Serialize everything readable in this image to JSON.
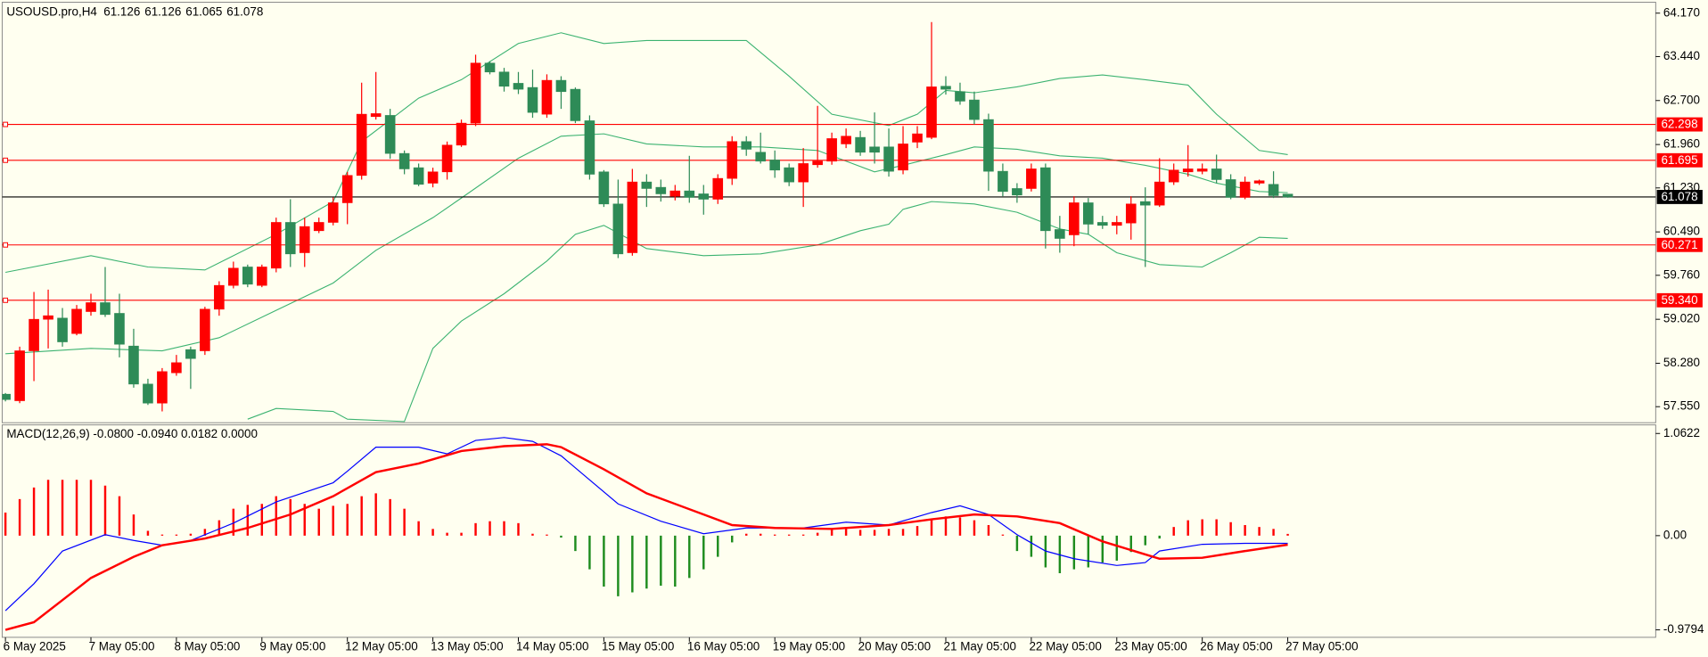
{
  "chart_data": [
    {
      "type": "candlestick",
      "title": "USOUSD.pro,H4",
      "categories": [
        "6 May 2025",
        null,
        null,
        null,
        null,
        null,
        "7 May 05:00",
        null,
        null,
        null,
        null,
        null,
        "8 May 05:00",
        null,
        null,
        null,
        null,
        null,
        "9 May 05:00",
        null,
        null,
        null,
        null,
        null,
        "12 May 05:00",
        null,
        null,
        null,
        null,
        null,
        "13 May 05:00",
        null,
        null,
        null,
        null,
        null,
        "14 May 05:00",
        null,
        null,
        null,
        null,
        null,
        "15 May 05:00",
        null,
        null,
        null,
        null,
        null,
        "16 May 05:00",
        null,
        null,
        null,
        null,
        null,
        "19 May 05:00",
        null,
        null,
        null,
        null,
        null,
        "20 May 05:00",
        null,
        null,
        null,
        null,
        null,
        "21 May 05:00",
        null,
        null,
        null,
        null,
        null,
        "22 May 05:00",
        null,
        null,
        null,
        null,
        null,
        "23 May 05:00",
        null,
        null,
        null,
        null,
        null,
        "26 May 05:00",
        null,
        null,
        null,
        null,
        null,
        "27 May 05:00"
      ],
      "open": [
        57.76,
        57.65,
        58.49,
        59.02,
        59.04,
        58.78,
        59.15,
        59.3,
        59.12,
        58.57,
        57.93,
        57.61,
        58.12,
        58.51,
        58.49,
        59.19,
        59.59,
        59.9,
        59.59,
        59.88,
        60.65,
        60.14,
        60.51,
        60.65,
        60.98,
        61.44,
        62.43,
        62.45,
        61.81,
        61.57,
        61.31,
        61.5,
        61.95,
        62.32,
        63.33,
        63.18,
        62.99,
        62.92,
        62.47,
        63.04,
        62.89,
        62.36,
        61.5,
        60.96,
        60.14,
        61.33,
        61.24,
        61.09,
        61.18,
        61.13,
        61.04,
        61.39,
        62.01,
        61.83,
        61.7,
        61.57,
        61.33,
        61.62,
        61.68,
        61.97,
        62.08,
        61.92,
        61.92,
        61.53,
        62.0,
        62.08,
        62.94,
        62.85,
        62.71,
        62.38,
        61.51,
        61.22,
        61.22,
        61.57,
        60.53,
        60.44,
        60.98,
        60.65,
        60.6,
        60.64,
        61.0,
        60.94,
        61.33,
        61.5,
        61.51,
        61.55,
        61.37,
        61.07,
        61.31,
        61.29,
        61.126
      ],
      "high": [
        57.78,
        58.56,
        59.48,
        59.52,
        59.21,
        59.26,
        59.45,
        59.9,
        59.45,
        58.86,
        58.02,
        58.2,
        58.42,
        58.56,
        59.23,
        59.66,
        59.99,
        59.94,
        59.94,
        60.73,
        61.04,
        60.73,
        60.73,
        61.07,
        61.5,
        63.0,
        63.18,
        62.56,
        61.86,
        61.64,
        61.57,
        62.01,
        62.38,
        63.47,
        63.36,
        63.25,
        63.18,
        63.22,
        63.14,
        63.11,
        62.92,
        62.45,
        61.53,
        61.37,
        61.55,
        61.46,
        61.37,
        61.28,
        61.77,
        61.28,
        61.46,
        62.1,
        62.1,
        62.16,
        61.86,
        61.64,
        61.9,
        62.61,
        62.16,
        62.23,
        62.19,
        62.5,
        62.23,
        62.27,
        62.27,
        64.02,
        63.11,
        63.0,
        62.85,
        62.48,
        61.64,
        61.31,
        61.64,
        61.64,
        60.76,
        61.09,
        61.06,
        60.76,
        60.76,
        61.09,
        61.24,
        61.73,
        61.64,
        61.95,
        61.64,
        61.79,
        61.46,
        61.42,
        61.37,
        61.51,
        61.126
      ],
      "low": [
        57.64,
        57.61,
        57.98,
        58.53,
        58.56,
        58.75,
        59.08,
        59.06,
        58.38,
        57.87,
        57.58,
        57.47,
        58.07,
        57.85,
        58.42,
        59.08,
        59.54,
        59.56,
        59.56,
        59.81,
        59.9,
        59.9,
        60.47,
        60.6,
        60.62,
        61.37,
        62.38,
        61.72,
        61.46,
        61.26,
        61.24,
        61.37,
        61.92,
        62.27,
        63.14,
        62.85,
        62.81,
        62.41,
        62.41,
        62.56,
        62.32,
        61.37,
        60.91,
        60.05,
        60.09,
        60.91,
        61.0,
        61.02,
        60.98,
        60.78,
        60.96,
        61.28,
        61.77,
        61.64,
        61.4,
        61.26,
        60.91,
        61.57,
        61.62,
        61.9,
        61.77,
        61.64,
        61.42,
        61.46,
        61.9,
        62.05,
        62.8,
        62.63,
        62.3,
        61.18,
        61.09,
        60.98,
        61.17,
        60.21,
        60.14,
        60.25,
        60.45,
        60.54,
        60.45,
        60.36,
        59.9,
        60.91,
        61.28,
        61.42,
        61.46,
        61.31,
        61.04,
        61.04,
        61.28,
        61.06,
        61.065
      ],
      "close": [
        57.67,
        58.49,
        59.02,
        59.08,
        58.64,
        59.19,
        59.3,
        59.1,
        58.6,
        57.93,
        57.61,
        58.14,
        58.29,
        58.36,
        59.19,
        59.59,
        59.88,
        59.61,
        59.9,
        60.65,
        60.12,
        60.58,
        60.65,
        60.98,
        61.44,
        62.47,
        62.48,
        61.81,
        61.55,
        61.29,
        61.5,
        61.95,
        62.32,
        63.33,
        63.18,
        62.94,
        62.89,
        62.5,
        63.04,
        62.85,
        62.36,
        61.46,
        60.96,
        60.12,
        61.33,
        61.22,
        61.13,
        61.18,
        61.07,
        61.04,
        61.39,
        62.01,
        61.88,
        61.68,
        61.53,
        61.33,
        61.64,
        61.68,
        62.06,
        62.1,
        61.83,
        61.83,
        61.51,
        61.97,
        62.14,
        62.93,
        62.89,
        62.69,
        62.38,
        61.51,
        61.17,
        61.11,
        61.55,
        60.51,
        60.38,
        60.98,
        60.62,
        60.6,
        60.65,
        60.96,
        60.94,
        61.33,
        61.53,
        61.55,
        61.55,
        61.37,
        61.07,
        61.33,
        61.35,
        61.1,
        61.078
      ],
      "up_color": "#ff0000",
      "down_color": "#2e8b57",
      "bands": [
        {
          "color": "#3cb371",
          "x": [
            0,
            6,
            10,
            14,
            19,
            23,
            25,
            29,
            32,
            36,
            39,
            42,
            45,
            52,
            55,
            58,
            62,
            64,
            66,
            68,
            71,
            74,
            77,
            80,
            83,
            85,
            88,
            90
          ],
          "values": [
            59.81,
            60.09,
            59.9,
            59.85,
            60.45,
            61.0,
            62.01,
            62.74,
            63.05,
            63.66,
            63.84,
            63.66,
            63.71,
            63.71,
            63.11,
            62.47,
            62.28,
            62.47,
            62.87,
            62.83,
            62.93,
            63.07,
            63.13,
            63.05,
            62.96,
            62.47,
            61.86,
            61.79
          ]
        },
        {
          "color": "#3cb371",
          "x": [
            0,
            6,
            11,
            15,
            19,
            23,
            26,
            30,
            32,
            36,
            39,
            42,
            45,
            49,
            53,
            57,
            61,
            63,
            66,
            68,
            71,
            74,
            77,
            80,
            83,
            85,
            88,
            90
          ],
          "values": [
            58.44,
            58.53,
            58.49,
            58.71,
            59.17,
            59.63,
            60.18,
            60.73,
            61.06,
            61.73,
            62.1,
            62.14,
            61.97,
            61.92,
            61.92,
            61.86,
            61.5,
            61.61,
            61.79,
            61.92,
            61.88,
            61.77,
            61.73,
            61.61,
            61.46,
            61.31,
            61.17,
            61.15
          ]
        },
        {
          "color": "#3cb371",
          "x": [
            17,
            19,
            23,
            24,
            28,
            30,
            32,
            35,
            38,
            40,
            42,
            45,
            49,
            53,
            57,
            60,
            62,
            63,
            65,
            68,
            71,
            74,
            76,
            78,
            81,
            84,
            86,
            88,
            90
          ],
          "values": [
            57.34,
            57.52,
            57.47,
            57.34,
            57.3,
            58.53,
            58.99,
            59.45,
            60.0,
            60.45,
            60.6,
            60.21,
            60.09,
            60.12,
            60.27,
            60.51,
            60.62,
            60.87,
            61.0,
            60.96,
            60.82,
            60.54,
            60.45,
            60.14,
            59.94,
            59.9,
            60.14,
            60.4,
            60.38
          ]
        }
      ],
      "levels": [
        62.298,
        61.695,
        60.271,
        {
          "value": 59.34,
          "label": "59.340"
        }
      ],
      "level_color": "#ff0000",
      "price_line_color": "#000000",
      "ylim": [
        57.28,
        64.335
      ],
      "yticks": [
        {
          "value": 64.17,
          "label": "64.170"
        },
        {
          "value": 63.44,
          "label": "63.440"
        },
        {
          "value": 62.7,
          "label": "62.700"
        },
        {
          "value": 61.96,
          "label": "61.960"
        },
        {
          "value": 61.23,
          "label": "61.230"
        },
        {
          "value": 60.49,
          "label": "60.490"
        },
        {
          "value": 59.76,
          "label": "59.760"
        },
        {
          "value": 59.02,
          "label": "59.020"
        },
        {
          "value": 58.28,
          "label": "58.280"
        },
        {
          "value": 57.55,
          "label": "57.550"
        }
      ]
    },
    {
      "type": "macd",
      "title": "MACD(12,26,9) -0.0800 -0.0940 0.0182 0.0000",
      "histogram": [
        0.24,
        0.38,
        0.5,
        0.58,
        0.58,
        0.58,
        0.58,
        0.52,
        0.41,
        0.22,
        0.05,
        0.01,
        0.01,
        0.02,
        0.07,
        0.16,
        0.28,
        0.32,
        0.33,
        0.41,
        0.38,
        0.33,
        0.28,
        0.31,
        0.33,
        0.41,
        0.44,
        0.38,
        0.28,
        0.15,
        0.07,
        0.03,
        0.03,
        0.13,
        0.15,
        0.15,
        0.13,
        0.02,
        0.0,
        -0.02,
        -0.16,
        -0.35,
        -0.53,
        -0.63,
        -0.59,
        -0.55,
        -0.52,
        -0.53,
        -0.44,
        -0.35,
        -0.22,
        -0.07,
        0.02,
        0.02,
        0.01,
        0.01,
        0.01,
        0.03,
        0.07,
        0.08,
        0.06,
        0.06,
        0.07,
        0.07,
        0.1,
        0.17,
        0.2,
        0.19,
        0.16,
        0.11,
        0.01,
        -0.16,
        -0.22,
        -0.33,
        -0.39,
        -0.35,
        -0.33,
        -0.28,
        -0.26,
        -0.17,
        -0.1,
        -0.03,
        0.09,
        0.16,
        0.17,
        0.17,
        0.14,
        0.11,
        0.09,
        0.07,
        0.0182
      ],
      "positive_color": "#ff0000",
      "negative_color": "#1e8c1e",
      "series": [
        {
          "color": "#0000ff",
          "width": 1,
          "x": [
            0,
            2,
            4,
            7,
            9,
            11,
            13,
            16,
            19,
            23,
            24,
            26,
            29,
            31,
            33,
            35,
            37,
            39,
            41,
            43,
            46,
            49,
            52,
            56,
            59,
            62,
            65,
            67,
            69,
            71,
            73,
            75,
            78,
            80,
            81,
            84,
            87,
            90
          ],
          "values": [
            -0.78,
            -0.5,
            -0.16,
            0.01,
            -0.05,
            -0.1,
            -0.05,
            0.13,
            0.35,
            0.55,
            0.67,
            0.92,
            0.92,
            0.85,
            0.99,
            1.02,
            0.98,
            0.83,
            0.58,
            0.33,
            0.15,
            0.02,
            0.08,
            0.08,
            0.14,
            0.11,
            0.24,
            0.31,
            0.22,
            0.01,
            -0.16,
            -0.24,
            -0.31,
            -0.28,
            -0.16,
            -0.09,
            -0.08,
            -0.08
          ]
        },
        {
          "color": "#ff0000",
          "width": 2,
          "x": [
            0,
            2,
            4,
            6,
            9,
            11,
            14,
            17,
            20,
            23,
            26,
            29,
            32,
            35,
            38,
            39,
            42,
            45,
            49,
            51,
            54,
            58,
            62,
            65,
            68,
            71,
            74,
            77,
            81,
            84,
            87,
            90
          ],
          "values": [
            -0.98,
            -0.9,
            -0.67,
            -0.44,
            -0.22,
            -0.1,
            -0.03,
            0.08,
            0.22,
            0.41,
            0.66,
            0.75,
            0.88,
            0.93,
            0.95,
            0.92,
            0.69,
            0.44,
            0.22,
            0.11,
            0.08,
            0.07,
            0.11,
            0.17,
            0.22,
            0.2,
            0.13,
            -0.06,
            -0.24,
            -0.23,
            -0.16,
            -0.094
          ]
        }
      ],
      "ylim": [
        -1.057,
        1.14
      ],
      "yticks": [
        1.0622,
        {
          "value": 0,
          "label": "0.00"
        },
        -0.9794
      ]
    }
  ]
}
